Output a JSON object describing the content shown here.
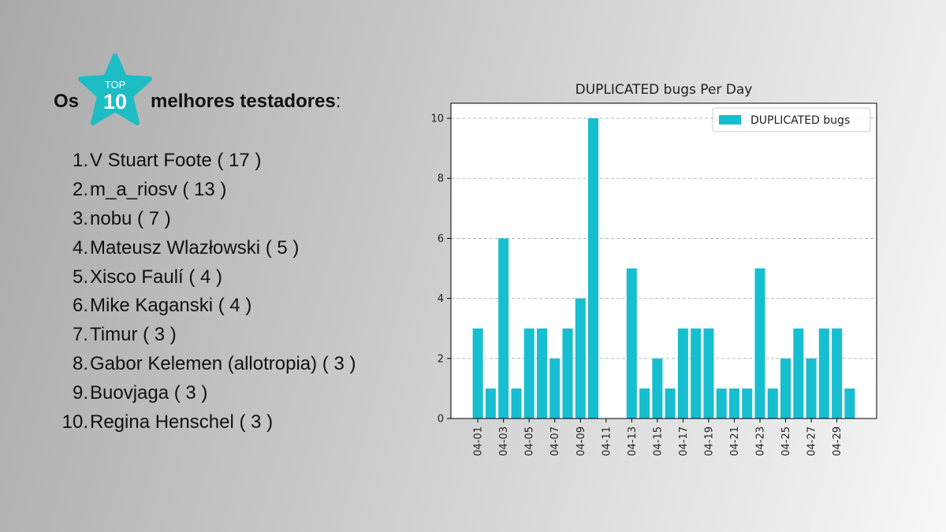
{
  "header": {
    "prefix": "Os",
    "badge_top": "TOP",
    "badge_number": "10",
    "suffix": "melhores testadores",
    "colon": ":"
  },
  "top10": [
    {
      "rank": "1.",
      "name": "V Stuart Foote ( 17 )"
    },
    {
      "rank": "2.",
      "name": "m_a_riosv ( 13 )"
    },
    {
      "rank": "3.",
      "name": "nobu ( 7 )"
    },
    {
      "rank": "4.",
      "name": "Mateusz Wlazłowski ( 5 )"
    },
    {
      "rank": "5.",
      "name": "Xisco Faulí ( 4 )"
    },
    {
      "rank": "6.",
      "name": "Mike Kaganski ( 4 )"
    },
    {
      "rank": "7.",
      "name": "Timur ( 3 )"
    },
    {
      "rank": "8.",
      "name": "Gabor Kelemen (allotropia) ( 3 )"
    },
    {
      "rank": "9.",
      "name": "Buovjaga ( 3 )"
    },
    {
      "rank": "10.",
      "name": "Regina Henschel ( 3 )"
    }
  ],
  "colors": {
    "accent": "#1ebdc4",
    "bar": "#17becf",
    "badge_text": "#ffffff"
  },
  "chart_data": {
    "type": "bar",
    "title": "DUPLICATED bugs Per Day",
    "xlabel": "",
    "ylabel": "",
    "legend": "top-right",
    "grid": "horizontal dashed",
    "series": [
      {
        "name": "DUPLICATED bugs",
        "color": "#17becf"
      }
    ],
    "categories": [
      "04-01",
      "04-02",
      "04-03",
      "04-04",
      "04-05",
      "04-06",
      "04-07",
      "04-08",
      "04-09",
      "04-10",
      "04-11",
      "04-12",
      "04-13",
      "04-14",
      "04-15",
      "04-16",
      "04-17",
      "04-18",
      "04-19",
      "04-20",
      "04-21",
      "04-22",
      "04-23",
      "04-24",
      "04-25",
      "04-26",
      "04-27",
      "04-28",
      "04-29",
      "04-30"
    ],
    "values": [
      3,
      1,
      6,
      1,
      3,
      3,
      2,
      3,
      4,
      10,
      0,
      0,
      5,
      1,
      2,
      1,
      3,
      3,
      3,
      1,
      1,
      1,
      5,
      1,
      2,
      3,
      2,
      3,
      3,
      1
    ],
    "xtick_labels": [
      "04-01",
      "04-03",
      "04-05",
      "04-07",
      "04-09",
      "04-11",
      "04-13",
      "04-15",
      "04-17",
      "04-19",
      "04-21",
      "04-23",
      "04-25",
      "04-27",
      "04-29"
    ],
    "yticks": [
      0,
      2,
      4,
      6,
      8,
      10
    ],
    "ylim": [
      0,
      10.5
    ]
  }
}
